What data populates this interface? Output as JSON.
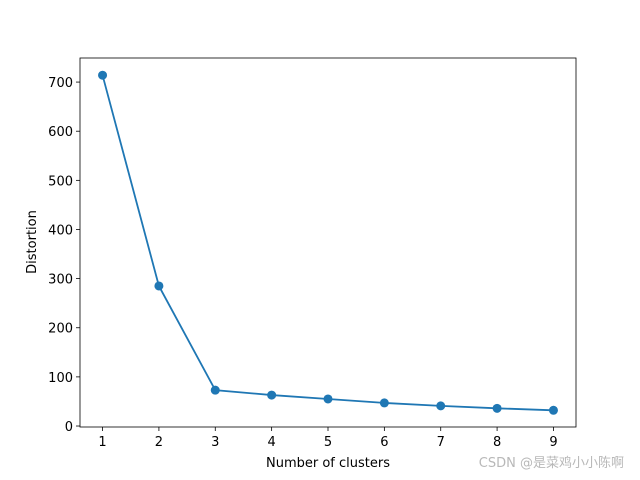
{
  "chart_data": {
    "type": "line",
    "x": [
      1,
      2,
      3,
      4,
      5,
      6,
      7,
      8,
      9
    ],
    "series": [
      {
        "color": "#1f77b4",
        "values": [
          714,
          285,
          73,
          63,
          55,
          47,
          41,
          36,
          32
        ]
      }
    ],
    "xlabel": "Number of clusters",
    "ylabel": "Distortion",
    "xlim": [
      0.6,
      9.4
    ],
    "xticks": [
      1,
      2,
      3,
      4,
      5,
      6,
      7,
      8,
      9
    ],
    "ylim": [
      -2,
      749
    ],
    "yticks": [
      0,
      100,
      200,
      300,
      400,
      500,
      600,
      700
    ],
    "markers": true,
    "grid": false,
    "watermark": "CSDN @是菜鸡小小陈啊"
  }
}
